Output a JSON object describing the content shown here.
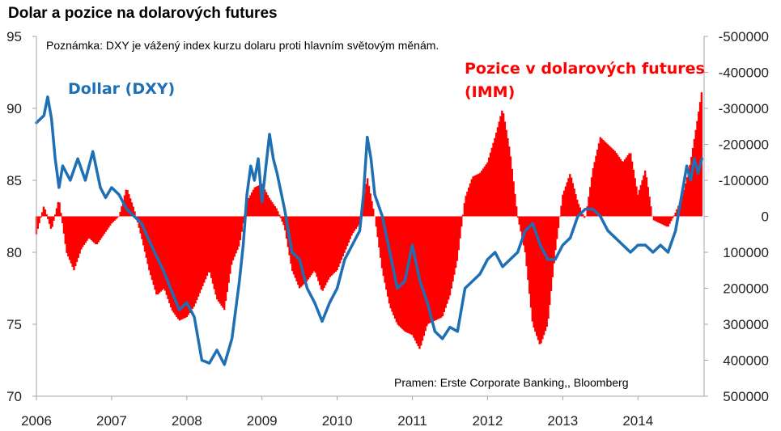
{
  "chart_data": {
    "type": "line",
    "title": "Dolar a pozice na dolarových futures",
    "note": "Poznámka: DXY je vážený index kurzu dolaru proti hlavním světovým měnám.",
    "source": "Pramen: Erste Corporate Banking,, Bloomberg",
    "x_ticks": [
      "2006",
      "2007",
      "2008",
      "2009",
      "2010",
      "2011",
      "2012",
      "2013",
      "2014"
    ],
    "xlim": [
      2006.0,
      2014.88
    ],
    "y_left": {
      "ylim": [
        70,
        95
      ],
      "ticks": [
        "95",
        "90",
        "85",
        "80",
        "75",
        "70"
      ],
      "tick_values": [
        95,
        90,
        85,
        80,
        75,
        70
      ]
    },
    "y_right": {
      "ylim": [
        500000,
        -500000
      ],
      "inverted": true,
      "ticks": [
        "-500000",
        "-400000",
        "-300000",
        "-200000",
        "-100000",
        "0",
        "100000",
        "200000",
        "300000",
        "400000",
        "500000"
      ],
      "tick_values": [
        -500000,
        -400000,
        -300000,
        -200000,
        -100000,
        0,
        100000,
        200000,
        300000,
        400000,
        500000
      ]
    },
    "colors": {
      "dxy": "#1F6FB5",
      "imm": "#FF0000",
      "axis": "#A6A6A6"
    },
    "series": [
      {
        "name": "Dollar (DXY)",
        "axis": "left",
        "type": "line",
        "x": [
          2006.0,
          2006.1,
          2006.15,
          2006.2,
          2006.25,
          2006.3,
          2006.35,
          2006.45,
          2006.55,
          2006.65,
          2006.75,
          2006.85,
          2006.92,
          2007.0,
          2007.1,
          2007.2,
          2007.3,
          2007.4,
          2007.5,
          2007.6,
          2007.7,
          2007.8,
          2007.9,
          2008.0,
          2008.1,
          2008.2,
          2008.3,
          2008.4,
          2008.5,
          2008.6,
          2008.7,
          2008.75,
          2008.8,
          2008.85,
          2008.9,
          2008.95,
          2009.0,
          2009.1,
          2009.15,
          2009.2,
          2009.3,
          2009.4,
          2009.5,
          2009.6,
          2009.7,
          2009.8,
          2009.9,
          2010.0,
          2010.1,
          2010.2,
          2010.3,
          2010.35,
          2010.4,
          2010.45,
          2010.5,
          2010.6,
          2010.7,
          2010.8,
          2010.9,
          2011.0,
          2011.1,
          2011.2,
          2011.3,
          2011.4,
          2011.5,
          2011.6,
          2011.7,
          2011.8,
          2011.9,
          2012.0,
          2012.1,
          2012.2,
          2012.3,
          2012.4,
          2012.5,
          2012.6,
          2012.7,
          2012.8,
          2012.9,
          2013.0,
          2013.1,
          2013.2,
          2013.3,
          2013.4,
          2013.5,
          2013.6,
          2013.7,
          2013.8,
          2013.9,
          2014.0,
          2014.1,
          2014.2,
          2014.3,
          2014.4,
          2014.5,
          2014.55,
          2014.6,
          2014.65,
          2014.7,
          2014.75,
          2014.8,
          2014.85
        ],
        "y": [
          89.0,
          89.5,
          90.8,
          89.3,
          86.5,
          84.5,
          86.0,
          85.0,
          86.5,
          85.0,
          87.0,
          84.5,
          83.8,
          84.5,
          84.0,
          83.0,
          82.5,
          82.0,
          80.8,
          79.7,
          78.6,
          77.3,
          76.0,
          76.5,
          75.5,
          72.5,
          72.3,
          73.2,
          72.2,
          74.0,
          78.0,
          80.5,
          84.0,
          86.0,
          85.0,
          86.5,
          83.5,
          88.2,
          86.5,
          85.5,
          83.0,
          80.0,
          79.5,
          77.5,
          76.5,
          75.2,
          76.5,
          77.5,
          79.5,
          80.5,
          81.5,
          84.0,
          88.0,
          86.5,
          84.0,
          82.5,
          80.0,
          77.5,
          78.0,
          80.5,
          78.0,
          76.5,
          74.5,
          74.0,
          74.8,
          74.5,
          77.5,
          78.0,
          78.5,
          79.5,
          80.0,
          79.0,
          79.5,
          80.0,
          81.5,
          82.0,
          80.5,
          79.5,
          79.5,
          80.5,
          81.0,
          82.5,
          83.0,
          83.0,
          82.5,
          81.5,
          81.0,
          80.5,
          80.0,
          80.5,
          80.5,
          80.0,
          80.5,
          80.0,
          81.5,
          83.0,
          84.5,
          86.0,
          85.0,
          86.5,
          85.5,
          86.5
        ]
      },
      {
        "name": "Pozice v dolarových futures (IMM)",
        "axis": "right",
        "type": "bar",
        "x": [
          2006.0,
          2006.1,
          2006.2,
          2006.3,
          2006.4,
          2006.5,
          2006.6,
          2006.7,
          2006.8,
          2006.9,
          2007.0,
          2007.1,
          2007.2,
          2007.3,
          2007.4,
          2007.5,
          2007.6,
          2007.7,
          2007.8,
          2007.9,
          2008.0,
          2008.1,
          2008.2,
          2008.3,
          2008.4,
          2008.5,
          2008.6,
          2008.7,
          2008.8,
          2008.9,
          2009.0,
          2009.1,
          2009.2,
          2009.3,
          2009.4,
          2009.5,
          2009.6,
          2009.7,
          2009.8,
          2009.9,
          2010.0,
          2010.1,
          2010.2,
          2010.3,
          2010.4,
          2010.5,
          2010.6,
          2010.7,
          2010.8,
          2010.9,
          2011.0,
          2011.1,
          2011.2,
          2011.3,
          2011.4,
          2011.5,
          2011.6,
          2011.7,
          2011.8,
          2011.9,
          2012.0,
          2012.1,
          2012.2,
          2012.3,
          2012.4,
          2012.5,
          2012.6,
          2012.7,
          2012.8,
          2012.9,
          2013.0,
          2013.1,
          2013.2,
          2013.3,
          2013.4,
          2013.5,
          2013.6,
          2013.7,
          2013.8,
          2013.9,
          2014.0,
          2014.1,
          2014.2,
          2014.3,
          2014.4,
          2014.5,
          2014.6,
          2014.7,
          2014.8,
          2014.85
        ],
        "y": [
          50000,
          -30000,
          40000,
          -50000,
          100000,
          150000,
          90000,
          60000,
          80000,
          50000,
          20000,
          0,
          -80000,
          -20000,
          60000,
          150000,
          220000,
          200000,
          260000,
          290000,
          280000,
          250000,
          200000,
          150000,
          230000,
          260000,
          130000,
          80000,
          -40000,
          -80000,
          -90000,
          -50000,
          -20000,
          30000,
          150000,
          200000,
          180000,
          150000,
          210000,
          170000,
          150000,
          100000,
          50000,
          20000,
          -110000,
          0,
          150000,
          250000,
          300000,
          320000,
          330000,
          370000,
          300000,
          290000,
          280000,
          220000,
          120000,
          -50000,
          -110000,
          -120000,
          -150000,
          -220000,
          -300000,
          -180000,
          0,
          100000,
          300000,
          360000,
          300000,
          100000,
          -60000,
          -120000,
          -40000,
          10000,
          -130000,
          -220000,
          -200000,
          -180000,
          -150000,
          -180000,
          -60000,
          -130000,
          10000,
          20000,
          30000,
          -10000,
          -60000,
          -150000,
          -280000,
          -350000
        ]
      }
    ],
    "annotations": [
      {
        "text": "Dollar (DXY)",
        "color": "#1F6FB5"
      },
      {
        "text": "Pozice v dolarových futures",
        "color": "#FF0000"
      },
      {
        "text": "(IMM)",
        "color": "#FF0000"
      }
    ]
  }
}
